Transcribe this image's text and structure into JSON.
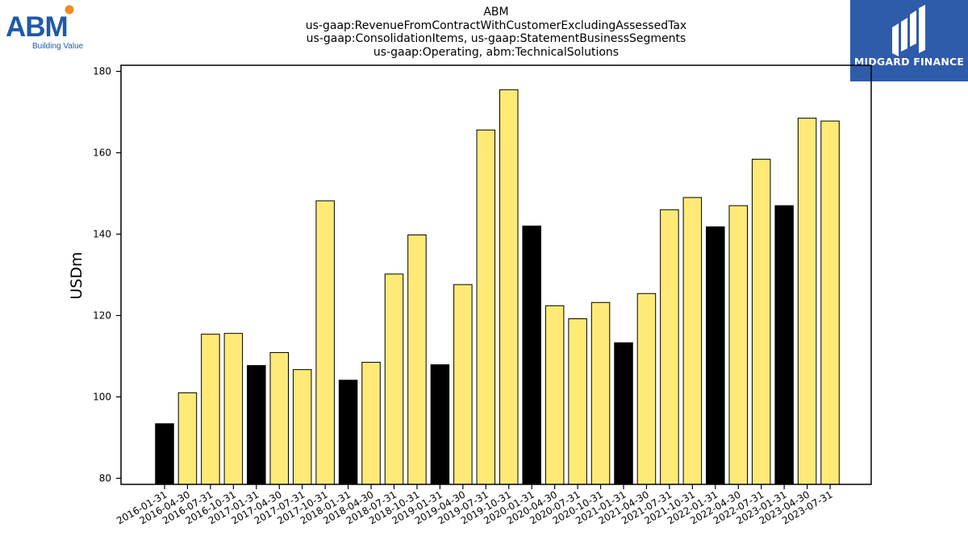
{
  "header": {
    "title_lines": [
      "ABM",
      "us-gaap:RevenueFromContractWithCustomerExcludingAssessedTax",
      "us-gaap:ConsolidationItems, us-gaap:StatementBusinessSegments",
      "us-gaap:Operating, abm:TechnicalSolutions"
    ]
  },
  "logos": {
    "abm": {
      "text": "ABM",
      "tagline": "Building Value",
      "color": "#1f5aa8",
      "dot_color": "#f38b1f"
    },
    "midgard": {
      "text": "MIDGARD FINANCE",
      "background": "#2f5bab"
    }
  },
  "colors": {
    "highlight": "#000000",
    "normal": "#ffea77",
    "edge": "#000000"
  },
  "chart_data": {
    "type": "bar",
    "ylabel": "USDm",
    "xlabel": "",
    "ylim": [
      78.5,
      181.5
    ],
    "yticks": [
      80,
      100,
      120,
      140,
      160,
      180
    ],
    "grid": false,
    "legend": "none",
    "categories": [
      "2016-01-31",
      "2016-04-30",
      "2016-07-31",
      "2016-10-31",
      "2017-01-31",
      "2017-04-30",
      "2017-07-31",
      "2017-10-31",
      "2018-01-31",
      "2018-04-30",
      "2018-07-31",
      "2018-10-31",
      "2019-01-31",
      "2019-04-30",
      "2019-07-31",
      "2019-10-31",
      "2020-01-31",
      "2020-04-30",
      "2020-07-31",
      "2020-10-31",
      "2021-01-31",
      "2021-04-30",
      "2021-07-31",
      "2021-10-31",
      "2022-01-31",
      "2022-04-30",
      "2022-07-31",
      "2023-01-31",
      "2023-04-30",
      "2023-07-31"
    ],
    "values": [
      93.4,
      101.0,
      115.4,
      115.6,
      107.7,
      110.9,
      106.7,
      148.2,
      104.1,
      108.5,
      130.2,
      139.8,
      107.9,
      127.6,
      165.6,
      175.5,
      142.0,
      122.4,
      119.2,
      123.2,
      113.3,
      125.4,
      146.0,
      149.0,
      141.8,
      147.0,
      158.4,
      147.0,
      168.5,
      167.8
    ],
    "highlighted": [
      0,
      4,
      8,
      12,
      16,
      20,
      24,
      27
    ]
  }
}
